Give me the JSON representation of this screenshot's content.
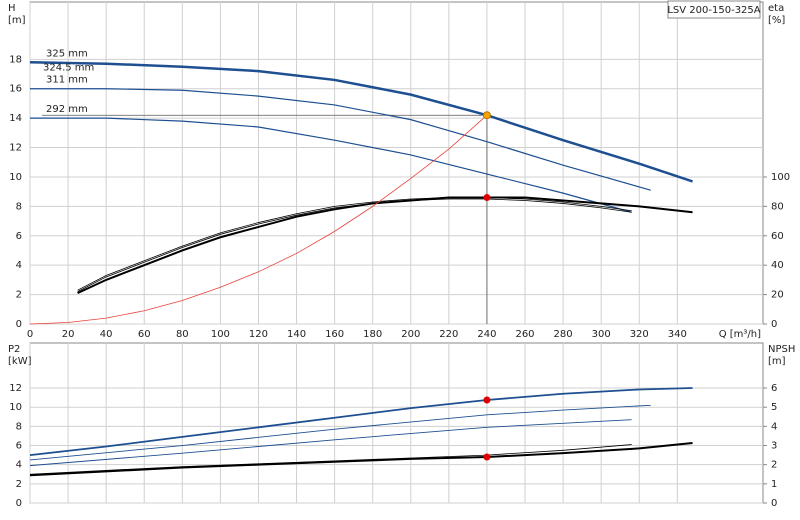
{
  "chart_data": [
    {
      "type": "line",
      "title": "LSV 200-150-325A",
      "y_label": "H",
      "y_unit": "[m]",
      "y2_label": "eta",
      "y2_unit": "[%]",
      "x_label": "Q [m³/h]",
      "xlim": [
        0,
        385
      ],
      "xticks": [
        0,
        20,
        40,
        60,
        80,
        100,
        120,
        140,
        160,
        180,
        200,
        220,
        240,
        260,
        280,
        300,
        320,
        340
      ],
      "ylim": [
        0,
        21.9
      ],
      "yticks": [
        0,
        2,
        4,
        6,
        8,
        10,
        12,
        14,
        16,
        18
      ],
      "y2lim": [
        0,
        219
      ],
      "y2ticks": [
        0,
        20,
        40,
        60,
        80,
        100
      ],
      "grid": true,
      "series": [
        {
          "name": "325 mm",
          "color": "#1d4f91",
          "line_width": 2.5,
          "x": [
            0,
            40,
            80,
            120,
            160,
            200,
            240,
            280,
            320,
            348
          ],
          "values": [
            17.8,
            17.7,
            17.5,
            17.2,
            16.6,
            15.6,
            14.2,
            12.5,
            10.9,
            9.7
          ]
        },
        {
          "name": "311 mm",
          "color": "#1d4f91",
          "line_width": 1.2,
          "x": [
            0,
            40,
            80,
            120,
            160,
            200,
            240,
            280,
            326
          ],
          "values": [
            16.0,
            16.0,
            15.9,
            15.5,
            14.9,
            13.9,
            12.4,
            10.8,
            9.1
          ]
        },
        {
          "name": "292 mm",
          "color": "#1d4f91",
          "line_width": 1.2,
          "x": [
            0,
            40,
            80,
            120,
            160,
            200,
            240,
            280,
            316
          ],
          "values": [
            14.0,
            14.0,
            13.8,
            13.4,
            12.5,
            11.5,
            10.2,
            8.9,
            7.6
          ]
        },
        {
          "color": "#000000",
          "line_width": 2,
          "axis": "y2",
          "x": [
            25,
            40,
            60,
            80,
            100,
            120,
            140,
            160,
            180,
            200,
            220,
            240,
            260,
            280,
            300,
            320,
            348
          ],
          "values": [
            21,
            30,
            40,
            50,
            59,
            66,
            73,
            78,
            82,
            84,
            86,
            86,
            86,
            84,
            82,
            80,
            76
          ]
        },
        {
          "color": "#000000",
          "line_width": 0.8,
          "axis": "y2",
          "x": [
            25,
            40,
            60,
            80,
            100,
            120,
            140,
            160,
            180,
            200,
            220,
            240,
            260,
            280,
            300,
            316
          ],
          "values": [
            22,
            32,
            42,
            52,
            61,
            68,
            74,
            79,
            82,
            84,
            85,
            85,
            84,
            82,
            79,
            76
          ]
        },
        {
          "color": "#000000",
          "line_width": 0.8,
          "axis": "y2",
          "x": [
            25,
            40,
            60,
            80,
            100,
            120,
            140,
            160,
            180,
            200,
            220,
            240,
            260,
            280,
            300,
            316
          ],
          "values": [
            23,
            33,
            43,
            53,
            62,
            69,
            75,
            80,
            83,
            85,
            86,
            86,
            85,
            83,
            80,
            77
          ]
        },
        {
          "color": "#e8413a",
          "line_width": 0.8,
          "x": [
            0,
            20,
            40,
            60,
            80,
            100,
            120,
            140,
            160,
            180,
            200,
            220,
            240
          ],
          "values": [
            0,
            0.1,
            0.4,
            0.9,
            1.6,
            2.5,
            3.55,
            4.8,
            6.3,
            8.0,
            9.9,
            11.9,
            14.2
          ]
        }
      ],
      "annotations": [
        "324.5 mm"
      ],
      "points": [
        {
          "x": 240,
          "value": 14.2,
          "color": "#f7a600"
        },
        {
          "x": 240,
          "value": 86,
          "color": "#e00000",
          "axis": "y2"
        }
      ]
    },
    {
      "type": "line",
      "y_label": "P2",
      "y_unit": "[kW]",
      "y2_label": "NPSH",
      "y2_unit": "[m]",
      "xlim": [
        0,
        385
      ],
      "xticks": [
        0,
        20,
        40,
        60,
        80,
        100,
        120,
        140,
        160,
        180,
        200,
        220,
        240,
        260,
        280,
        300,
        320,
        340
      ],
      "ylim": [
        0,
        16.7
      ],
      "yticks": [
        0,
        2,
        4,
        6,
        8,
        10,
        12
      ],
      "y2lim": [
        0,
        8.35
      ],
      "y2ticks": [
        0,
        1,
        2,
        3,
        4,
        5,
        6
      ],
      "grid": true,
      "series": [
        {
          "color": "#1d4f91",
          "line_width": 1.8,
          "x": [
            0,
            40,
            80,
            120,
            160,
            200,
            240,
            280,
            320,
            348
          ],
          "values": [
            5.0,
            5.9,
            6.9,
            7.9,
            8.9,
            9.9,
            10.75,
            11.4,
            11.85,
            12.0
          ]
        },
        {
          "color": "#1d4f91",
          "line_width": 0.9,
          "x": [
            0,
            80,
            160,
            240,
            280,
            326
          ],
          "values": [
            4.5,
            6.0,
            7.7,
            9.2,
            9.7,
            10.2
          ]
        },
        {
          "color": "#1d4f91",
          "line_width": 0.9,
          "x": [
            0,
            80,
            160,
            240,
            316
          ],
          "values": [
            3.9,
            5.2,
            6.6,
            7.9,
            8.7
          ]
        },
        {
          "color": "#000000",
          "line_width": 2,
          "axis": "y2",
          "x": [
            0,
            40,
            80,
            120,
            160,
            200,
            240,
            280,
            320,
            348
          ],
          "values": [
            1.45,
            1.65,
            1.85,
            2.0,
            2.15,
            2.3,
            2.4,
            2.6,
            2.85,
            3.13
          ]
        },
        {
          "color": "#000000",
          "line_width": 0.8,
          "axis": "y2",
          "x": [
            0,
            40,
            80,
            120,
            160,
            200,
            240,
            280,
            316
          ],
          "values": [
            1.5,
            1.7,
            1.9,
            2.05,
            2.2,
            2.35,
            2.5,
            2.75,
            3.05
          ]
        }
      ],
      "points": [
        {
          "x": 240,
          "value": 10.75,
          "color": "#e00000"
        },
        {
          "x": 240,
          "value": 2.4,
          "color": "#e00000",
          "axis": "y2"
        }
      ]
    }
  ]
}
